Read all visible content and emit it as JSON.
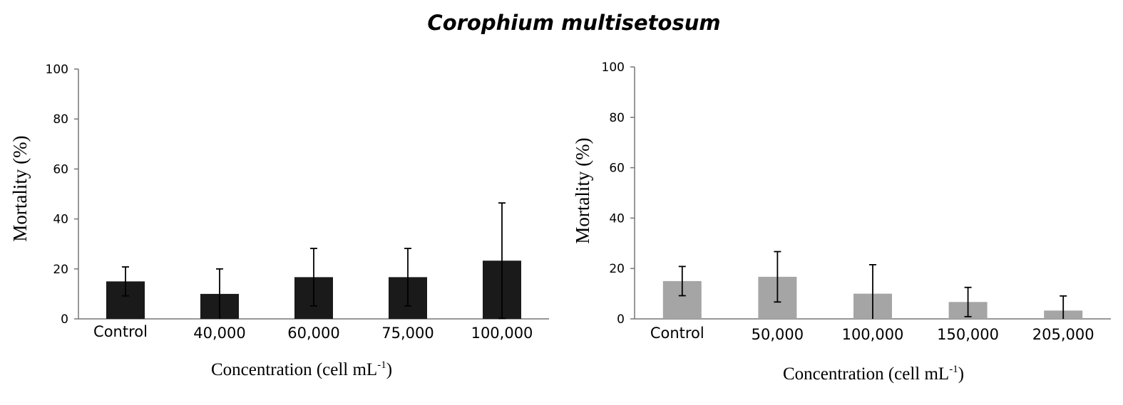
{
  "figure_title": "Corophium multisetosum",
  "chart_data": [
    {
      "type": "bar",
      "categories": [
        "Control",
        "40,000",
        "60,000",
        "75,000",
        "100,000"
      ],
      "values": [
        15,
        10,
        16.7,
        16.7,
        23.3
      ],
      "errors": [
        5.8,
        10,
        11.5,
        11.5,
        23.1
      ],
      "bar_color": "#1a1a1a",
      "ylabel": "Mortality (%)",
      "xlabel": "Concentration (cell mL",
      "xlabel_sup": "-1",
      "xlabel_end": ")",
      "ylim": [
        0,
        100
      ],
      "yticks": [
        0,
        20,
        40,
        60,
        80,
        100
      ],
      "grid": false
    },
    {
      "type": "bar",
      "categories": [
        "Control",
        "50,000",
        "100,000",
        "150,000",
        "205,000"
      ],
      "values": [
        15,
        16.7,
        10,
        6.7,
        3.3
      ],
      "errors": [
        5.8,
        10,
        11.5,
        5.8,
        5.8
      ],
      "bar_color": "#a5a5a5",
      "ylabel": "Mortality (%)",
      "xlabel": "Concentration (cell mL",
      "xlabel_sup": "-1",
      "xlabel_end": ")",
      "ylim": [
        0,
        100
      ],
      "yticks": [
        0,
        20,
        40,
        60,
        80,
        100
      ],
      "grid": false
    }
  ]
}
